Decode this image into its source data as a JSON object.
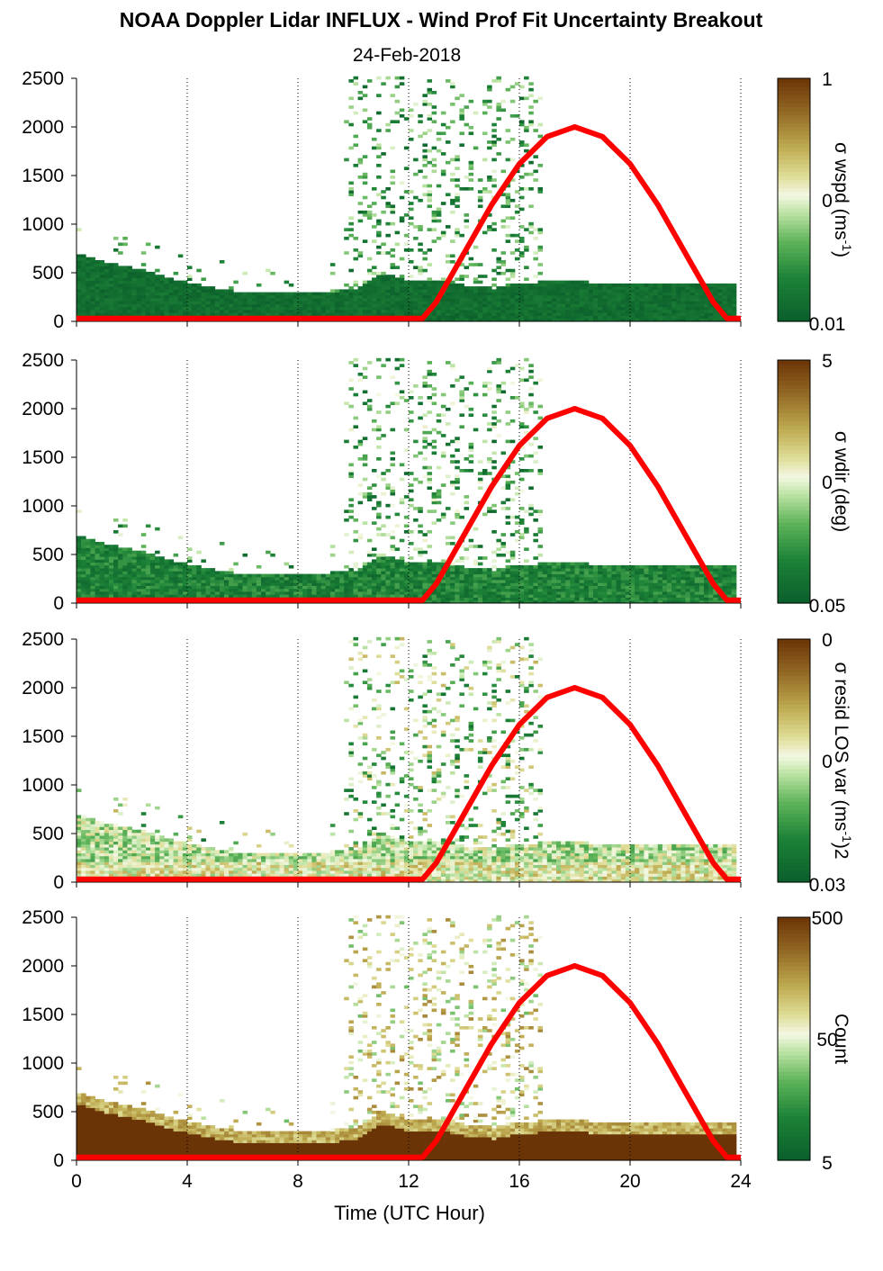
{
  "title": "NOAA Doppler Lidar INFLUX - Wind Prof Fit Uncertainty Breakout",
  "subtitle": "24-Feb-2018",
  "xlabel": "Time (UTC Hour)",
  "colors": {
    "sun_curve": "#ff0000",
    "colormap_low": "#0b5e2b",
    "colormap_mid": "#f2f7e3",
    "colormap_high": "#6b3406"
  },
  "chart_data": [
    {
      "type": "heatmap",
      "ylabel": "",
      "colorbar_label": "σ wspd (ms-1)",
      "colorbar_label_text": "σ wspd (ms",
      "colorbar_label_sup": "-1",
      "colorbar_label_end": ")",
      "colorbar_scale": "log",
      "colorbar_ticks": [
        "1",
        "0",
        "0.01"
      ],
      "xlim": [
        0,
        24
      ],
      "ylim": [
        0,
        2500
      ],
      "x_ticks": [
        "0",
        "4",
        "8",
        "12",
        "16",
        "20",
        "24"
      ],
      "y_ticks": [
        "0",
        "500",
        "1000",
        "1500",
        "2000",
        "2500"
      ],
      "grid": "dotted vertical lines every 4 hours",
      "field": "wspd"
    },
    {
      "type": "heatmap",
      "ylabel": "",
      "colorbar_label": "σ wdir (deg)",
      "colorbar_label_text": "σ wdir (deg)",
      "colorbar_label_sup": "",
      "colorbar_label_end": "",
      "colorbar_scale": "log",
      "colorbar_ticks": [
        "5",
        "0",
        "0.05"
      ],
      "xlim": [
        0,
        24
      ],
      "ylim": [
        0,
        2500
      ],
      "x_ticks": [
        "0",
        "4",
        "8",
        "12",
        "16",
        "20",
        "24"
      ],
      "y_ticks": [
        "0",
        "500",
        "1000",
        "1500",
        "2000",
        "2500"
      ],
      "grid": "dotted vertical lines every 4 hours",
      "field": "wdir"
    },
    {
      "type": "heatmap",
      "ylabel": "",
      "colorbar_label": "σ resid LOS var (ms-1)2",
      "colorbar_label_text": "σ resid LOS var (ms",
      "colorbar_label_sup": "-1",
      "colorbar_label_end": ")2",
      "colorbar_scale": "log",
      "colorbar_ticks": [
        "0",
        "0",
        "0.03"
      ],
      "xlim": [
        0,
        24
      ],
      "ylim": [
        0,
        2500
      ],
      "x_ticks": [
        "0",
        "4",
        "8",
        "12",
        "16",
        "20",
        "24"
      ],
      "y_ticks": [
        "0",
        "500",
        "1000",
        "1500",
        "2000",
        "2500"
      ],
      "grid": "dotted vertical lines every 4 hours",
      "field": "resid"
    },
    {
      "type": "heatmap",
      "ylabel": "",
      "colorbar_label": "Count",
      "colorbar_label_text": "Count",
      "colorbar_label_sup": "",
      "colorbar_label_end": "",
      "colorbar_scale": "log",
      "colorbar_ticks": [
        "500",
        "50",
        "5"
      ],
      "xlim": [
        0,
        24
      ],
      "ylim": [
        0,
        2500
      ],
      "x_ticks": [
        "0",
        "4",
        "8",
        "12",
        "16",
        "20",
        "24"
      ],
      "y_ticks": [
        "0",
        "500",
        "1000",
        "1500",
        "2000",
        "2500"
      ],
      "grid": "dotted vertical lines every 4 hours",
      "field": "count"
    }
  ],
  "sun_elevation_curve": {
    "description": "red curve",
    "x": [
      0,
      12.5,
      13,
      14,
      15,
      16,
      17,
      18,
      19,
      20,
      21,
      22,
      23,
      23.5,
      24
    ],
    "y": [
      30,
      30,
      200,
      700,
      1200,
      1620,
      1900,
      2000,
      1900,
      1620,
      1200,
      700,
      200,
      30,
      30
    ]
  },
  "mixing_layer_top": {
    "hours": [
      0,
      1,
      2,
      3,
      4,
      5,
      6,
      7,
      8,
      9,
      10,
      11,
      12,
      13,
      14,
      15,
      16,
      17,
      18,
      19,
      20,
      21,
      22,
      23,
      23.8
    ],
    "height_m": [
      680,
      600,
      540,
      460,
      380,
      330,
      280,
      300,
      300,
      280,
      330,
      480,
      400,
      420,
      350,
      330,
      380,
      400,
      400,
      380,
      380,
      380,
      380,
      380,
      380
    ]
  }
}
